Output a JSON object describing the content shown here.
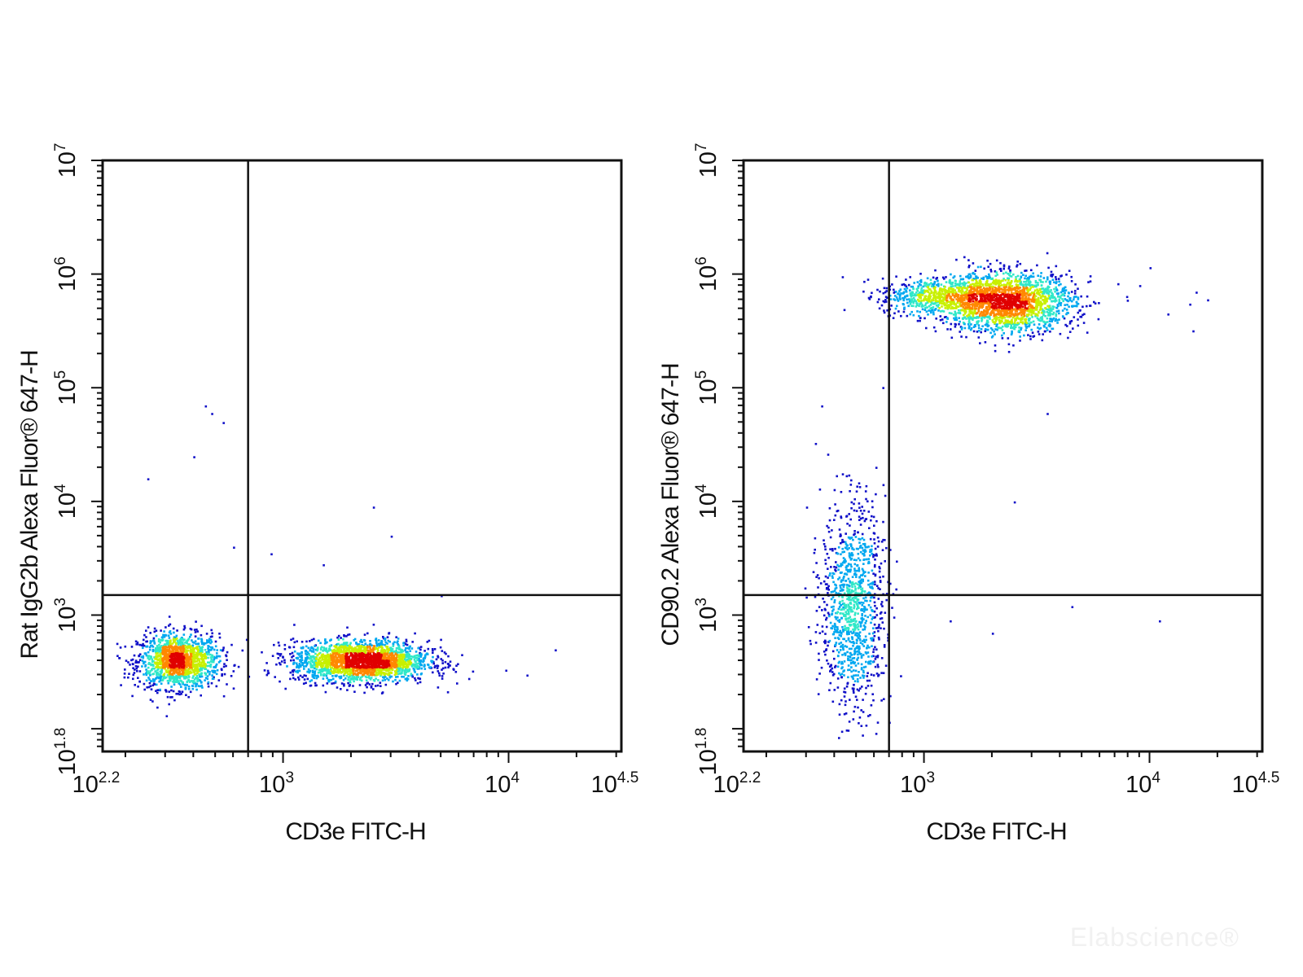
{
  "chart_data": [
    {
      "type": "scatter",
      "plot_kind": "flow cytometry density dot plot",
      "xlabel": "CD3e FITC-H",
      "ylabel": "Rat IgG2b Alexa Fluor® 647-H",
      "x_scale": "log",
      "y_scale": "log",
      "xlim": [
        158.5,
        31623
      ],
      "ylim": [
        63.1,
        10000000
      ],
      "x_ticks": [
        {
          "base": "10",
          "exp": "2.2",
          "value": 158.5
        },
        {
          "base": "10",
          "exp": "3",
          "value": 1000
        },
        {
          "base": "10",
          "exp": "4",
          "value": 10000
        },
        {
          "base": "10",
          "exp": "4.5",
          "value": 31623
        }
      ],
      "y_ticks": [
        {
          "base": "10",
          "exp": "1.8",
          "value": 63.1
        },
        {
          "base": "10",
          "exp": "3",
          "value": 1000
        },
        {
          "base": "10",
          "exp": "4",
          "value": 10000
        },
        {
          "base": "10",
          "exp": "5",
          "value": 100000
        },
        {
          "base": "10",
          "exp": "6",
          "value": 1000000
        },
        {
          "base": "10",
          "exp": "7",
          "value": 10000000
        }
      ],
      "quadrant_gate": {
        "x": 700,
        "y": 1500
      },
      "populations": [
        {
          "x_center": 340,
          "y_center": 400,
          "x_spread": 0.09,
          "y_spread": 0.12,
          "weight": 0.4
        },
        {
          "x_center": 2200,
          "y_center": 400,
          "x_spread": 0.15,
          "y_spread": 0.09,
          "weight": 0.6
        }
      ],
      "sparse_points": [
        [
          400,
          25000
        ],
        [
          450,
          70000
        ],
        [
          480,
          60000
        ],
        [
          540,
          50000
        ],
        [
          250,
          16000
        ],
        [
          600,
          4000
        ],
        [
          880,
          3500
        ],
        [
          1500,
          2800
        ],
        [
          2500,
          9000
        ],
        [
          3000,
          5000
        ],
        [
          5000,
          1500
        ],
        [
          12000,
          300
        ],
        [
          16000,
          500
        ]
      ]
    },
    {
      "type": "scatter",
      "plot_kind": "flow cytometry density dot plot",
      "xlabel": "CD3e FITC-H",
      "ylabel": "CD90.2 Alexa Fluor® 647-H",
      "x_scale": "log",
      "y_scale": "log",
      "xlim": [
        158.5,
        31623
      ],
      "ylim": [
        63.1,
        10000000
      ],
      "x_ticks": [
        {
          "base": "10",
          "exp": "2.2",
          "value": 158.5
        },
        {
          "base": "10",
          "exp": "3",
          "value": 1000
        },
        {
          "base": "10",
          "exp": "4",
          "value": 10000
        },
        {
          "base": "10",
          "exp": "4.5",
          "value": 31623
        }
      ],
      "y_ticks": [
        {
          "base": "10",
          "exp": "1.8",
          "value": 63.1
        },
        {
          "base": "10",
          "exp": "3",
          "value": 1000
        },
        {
          "base": "10",
          "exp": "4",
          "value": 10000
        },
        {
          "base": "10",
          "exp": "5",
          "value": 100000
        },
        {
          "base": "10",
          "exp": "6",
          "value": 1000000
        },
        {
          "base": "10",
          "exp": "7",
          "value": 10000000
        }
      ],
      "quadrant_gate": {
        "x": 700,
        "y": 1500
      },
      "populations": [
        {
          "x_center": 2300,
          "y_center": 580000,
          "x_spread": 0.15,
          "y_spread": 0.13,
          "weight": 0.55
        },
        {
          "x_center": 480,
          "y_center": 1200,
          "x_spread": 0.07,
          "y_spread": 0.45,
          "weight": 0.3
        },
        {
          "x_center": 1100,
          "y_center": 650000,
          "x_spread": 0.12,
          "y_spread": 0.08,
          "weight": 0.15
        }
      ],
      "sparse_points": [
        [
          12000,
          450000
        ],
        [
          15000,
          550000
        ],
        [
          15500,
          320000
        ],
        [
          16000,
          700000
        ],
        [
          18000,
          600000
        ],
        [
          10000,
          1150000
        ],
        [
          9000,
          800000
        ],
        [
          350,
          70000
        ],
        [
          300,
          9000
        ],
        [
          1300,
          900
        ],
        [
          2000,
          700
        ],
        [
          4500,
          1200
        ],
        [
          11000,
          900
        ],
        [
          2500,
          10000
        ],
        [
          3500,
          60000
        ]
      ]
    }
  ],
  "watermark": "Elabscience®",
  "colors": {
    "density_scale": [
      "#1010c8",
      "#00a8f0",
      "#30e8c8",
      "#c8f000",
      "#ff8800",
      "#e00000"
    ],
    "axis": "#111111"
  }
}
